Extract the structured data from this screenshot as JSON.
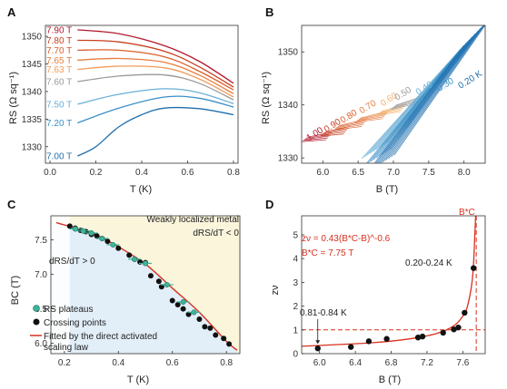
{
  "panels": [
    {
      "id": "A",
      "xlabel": "T (K)",
      "ylabel": "RS (Ω sq⁻¹)",
      "xlim": [
        -0.02,
        0.82
      ],
      "ylim": [
        1327,
        1352
      ],
      "xticks": [
        "0.0",
        "0.2",
        "0.4",
        "0.6",
        "0.8"
      ],
      "yticks": [
        "1330",
        "1335",
        "1340",
        "1345",
        "1350"
      ]
    },
    {
      "id": "B",
      "xlabel": "B (T)",
      "ylabel": "RS (Ω sq⁻¹)",
      "xlim": [
        5.7,
        8.3
      ],
      "ylim": [
        1329,
        1355
      ],
      "xticks": [
        "6.0",
        "6.5",
        "7.0",
        "7.5",
        "8.0"
      ],
      "yticks": [
        "1330",
        "1340",
        "1350"
      ]
    },
    {
      "id": "C",
      "xlabel": "T (K)",
      "ylabel": "BC (T)",
      "xlim": [
        0.15,
        0.85
      ],
      "ylim": [
        5.85,
        7.85
      ],
      "xticks": [
        "0.2",
        "0.4",
        "0.6",
        "0.8"
      ],
      "yticks": [
        "6.0",
        "6.5",
        "7.0",
        "7.5"
      ],
      "annotations": [
        "Weakly localized metal",
        "dRS/dT < 0",
        "dRS/dT > 0"
      ],
      "legend": [
        "RS plateaus",
        "Crossing points",
        "Fitted by the direct activated",
        "scaling law"
      ]
    },
    {
      "id": "D",
      "xlabel": "B (T)",
      "ylabel": "zν",
      "xlim": [
        5.8,
        7.85
      ],
      "ylim": [
        0,
        5.8
      ],
      "xticks": [
        "6.0",
        "6.4",
        "6.8",
        "7.2",
        "7.6"
      ],
      "yticks": [
        "0",
        "1",
        "2",
        "3",
        "4",
        "5"
      ],
      "annotations": [
        "zν = 0.43(B*C-B)^-0.6",
        "B*C = 7.75 T",
        "B*C",
        "0.20-0.24 K",
        "0.81-0.84 K"
      ]
    }
  ],
  "colors": {
    "red": "#d7301f",
    "blue": "#2b8cbe",
    "orange": "#f08a4b",
    "gray": "#888888",
    "bg_yellow": "#fbf5dc",
    "bg_blue": "#e2eef8",
    "teal": "#3fb39a"
  },
  "chart_data": [
    {
      "type": "line",
      "title": "",
      "xlabel": "T (K)",
      "ylabel": "RS (Ω sq⁻¹)",
      "series": [
        {
          "name": "7.90 T",
          "color": "#b2182b",
          "x": [
            0.12,
            0.3,
            0.5,
            0.65,
            0.8
          ],
          "y": [
            1351.2,
            1350.5,
            1348.3,
            1345.5,
            1341.5
          ]
        },
        {
          "name": "7.80 T",
          "color": "#c8401f",
          "x": [
            0.12,
            0.3,
            0.5,
            0.65,
            0.8
          ],
          "y": [
            1349.3,
            1349.0,
            1347.3,
            1344.5,
            1340.8
          ]
        },
        {
          "name": "7.70 T",
          "color": "#d95f29",
          "x": [
            0.12,
            0.3,
            0.5,
            0.65,
            0.8
          ],
          "y": [
            1347.5,
            1347.5,
            1346.3,
            1343.7,
            1340.3
          ]
        },
        {
          "name": "7.65 T",
          "color": "#e77d3e",
          "x": [
            0.12,
            0.3,
            0.5,
            0.65,
            0.8
          ],
          "y": [
            1345.7,
            1346.0,
            1345.3,
            1343.0,
            1339.6
          ]
        },
        {
          "name": "7.63 T",
          "color": "#f29b5a",
          "x": [
            0.12,
            0.3,
            0.5,
            0.65,
            0.8
          ],
          "y": [
            1344.0,
            1344.6,
            1344.3,
            1342.3,
            1339.0
          ]
        },
        {
          "name": "7.60 T",
          "color": "#9a9a9a",
          "x": [
            0.12,
            0.3,
            0.5,
            0.65,
            0.8
          ],
          "y": [
            1341.8,
            1342.8,
            1343.0,
            1341.5,
            1338.5
          ]
        },
        {
          "name": "7.50 T",
          "color": "#6aaed6",
          "x": [
            0.12,
            0.3,
            0.5,
            0.65,
            0.8
          ],
          "y": [
            1337.7,
            1339.5,
            1340.5,
            1339.8,
            1337.8
          ]
        },
        {
          "name": "7.20 T",
          "color": "#3a8fc7",
          "x": [
            0.12,
            0.3,
            0.5,
            0.65,
            0.8
          ],
          "y": [
            1334.3,
            1337.0,
            1339.0,
            1338.8,
            1337.2
          ]
        },
        {
          "name": "7.00 T",
          "color": "#1f6fae",
          "x": [
            0.12,
            0.2,
            0.3,
            0.4,
            0.5,
            0.65,
            0.8
          ],
          "y": [
            1328.3,
            1330.0,
            1333.6,
            1335.8,
            1337.0,
            1336.9,
            1335.8
          ]
        }
      ]
    },
    {
      "type": "line",
      "title": "",
      "xlabel": "B (T)",
      "ylabel": "RS (Ω sq⁻¹)",
      "series": [
        {
          "name": "1.00",
          "color": "#b2182b",
          "x": [
            5.75,
            6.1
          ],
          "y": [
            1333.6,
            1334.3
          ]
        },
        {
          "name": "0.90",
          "color": "#c8401f",
          "x": [
            6.0,
            6.35
          ],
          "y": [
            1334.6,
            1335.4
          ]
        },
        {
          "name": "0.80",
          "color": "#d95f29",
          "x": [
            6.2,
            6.6
          ],
          "y": [
            1335.8,
            1336.8
          ]
        },
        {
          "name": "0.70",
          "color": "#e77d3e",
          "x": [
            6.5,
            6.9
          ],
          "y": [
            1337.2,
            1338.3
          ]
        },
        {
          "name": "0.60",
          "color": "#f5b26b",
          "x": [
            6.8,
            7.15
          ],
          "y": [
            1338.5,
            1339.6
          ]
        },
        {
          "name": "0.50",
          "color": "#9a9a9a",
          "x": [
            7.0,
            7.4
          ],
          "y": [
            1339.6,
            1341.2
          ]
        },
        {
          "name": "0.40",
          "color": "#6aaed6",
          "x": [
            6.75,
            8.1
          ],
          "y": [
            1331.5,
            1352.5
          ]
        },
        {
          "name": "0.30",
          "color": "#3a8fc7",
          "x": [
            6.8,
            8.15
          ],
          "y": [
            1330.3,
            1353.3
          ]
        },
        {
          "name": "0.20 K",
          "color": "#1f6fae",
          "x": [
            6.85,
            8.2
          ],
          "y": [
            1329.2,
            1354.0
          ]
        }
      ]
    },
    {
      "type": "scatter",
      "title": "",
      "xlabel": "T (K)",
      "ylabel": "BC (T)",
      "series": [
        {
          "name": "RS plateaus",
          "color": "#3fb39a",
          "x": [
            0.24,
            0.27,
            0.3,
            0.34,
            0.38,
            0.46,
            0.5,
            0.58,
            0.64,
            0.68
          ],
          "y": [
            7.66,
            7.63,
            7.6,
            7.52,
            7.43,
            7.22,
            7.16,
            6.85,
            6.6,
            6.45
          ]
        },
        {
          "name": "Crossing points",
          "color": "#111111",
          "x": [
            0.22,
            0.24,
            0.26,
            0.28,
            0.3,
            0.32,
            0.34,
            0.36,
            0.4,
            0.44,
            0.46,
            0.48,
            0.5,
            0.52,
            0.55,
            0.56,
            0.6,
            0.62,
            0.64,
            0.66,
            0.7,
            0.72,
            0.74,
            0.76,
            0.79,
            0.81
          ],
          "y": [
            7.7,
            7.67,
            7.64,
            7.62,
            7.58,
            7.56,
            7.52,
            7.48,
            7.38,
            7.28,
            7.22,
            7.18,
            7.17,
            6.98,
            6.9,
            6.82,
            6.62,
            6.56,
            6.5,
            6.42,
            6.35,
            6.24,
            6.22,
            6.12,
            6.07,
            5.99
          ]
        },
        {
          "name": "Fitted by the direct activated scaling law",
          "color": "#d7301f",
          "x": [
            0.17,
            0.3,
            0.4,
            0.5,
            0.6,
            0.7,
            0.8,
            0.84
          ],
          "y": [
            7.75,
            7.6,
            7.4,
            7.15,
            6.8,
            6.45,
            6.03,
            5.9
          ]
        }
      ]
    },
    {
      "type": "scatter",
      "title": "",
      "xlabel": "B (T)",
      "ylabel": "zν",
      "series": [
        {
          "name": "zν",
          "color": "#111111",
          "x": [
            5.98,
            6.35,
            6.55,
            6.75,
            7.1,
            7.15,
            7.38,
            7.5,
            7.55,
            7.62,
            7.72
          ],
          "y": [
            0.22,
            0.28,
            0.52,
            0.62,
            0.68,
            0.72,
            0.88,
            1.02,
            1.1,
            1.72,
            3.6
          ]
        },
        {
          "name": "fit",
          "color": "#d7301f",
          "x": [
            5.8,
            6.2,
            6.6,
            7.0,
            7.3,
            7.5,
            7.6,
            7.65,
            7.7,
            7.72,
            7.735,
            7.745
          ],
          "y": [
            0.31,
            0.38,
            0.46,
            0.62,
            0.84,
            1.17,
            1.58,
            1.97,
            2.92,
            3.8,
            5.1,
            6.0
          ]
        }
      ],
      "reference_lines": {
        "h": 1.0,
        "v": 7.75
      }
    }
  ]
}
